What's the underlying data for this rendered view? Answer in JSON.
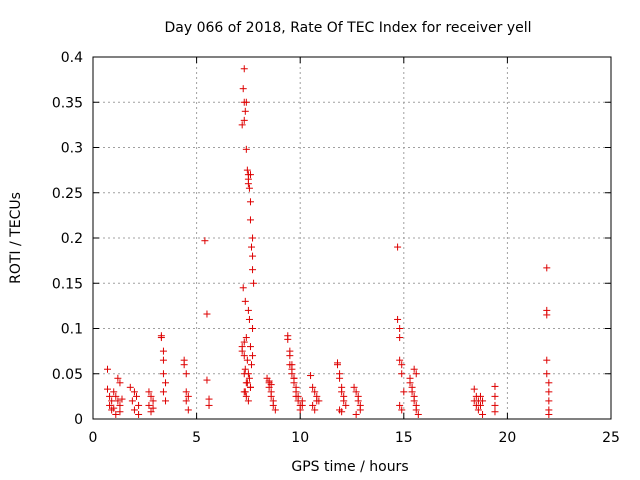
{
  "chart_data": {
    "type": "scatter",
    "title": "Day 066 of 2018, Rate Of TEC Index for receiver yell",
    "xlabel": "GPS time / hours",
    "ylabel": "ROTI / TECUs",
    "xlim": [
      0,
      25
    ],
    "ylim": [
      0,
      0.4
    ],
    "xticks": [
      0,
      5,
      10,
      15,
      20,
      25
    ],
    "yticks": [
      0,
      0.05,
      0.1,
      0.15,
      0.2,
      0.25,
      0.3,
      0.35,
      0.4
    ],
    "xtick_labels": [
      "0",
      "5",
      "10",
      "15",
      "20",
      "25"
    ],
    "ytick_labels": [
      "0",
      "0.05",
      "0.1",
      "0.15",
      "0.2",
      "0.25",
      "0.3",
      "0.35",
      "0.4"
    ],
    "grid": true,
    "marker": "+",
    "color": "#dd0000",
    "series": [
      {
        "name": "ROTI",
        "x": [
          0.7,
          0.7,
          0.8,
          0.8,
          0.9,
          0.9,
          1.0,
          1.0,
          1.1,
          1.1,
          1.2,
          1.2,
          1.3,
          1.3,
          1.3,
          1.4,
          1.8,
          1.9,
          2.0,
          2.0,
          2.1,
          2.2,
          2.2,
          2.7,
          2.7,
          2.8,
          2.8,
          2.9,
          2.9,
          3.3,
          3.3,
          3.4,
          3.4,
          3.4,
          3.4,
          3.5,
          3.5,
          4.4,
          4.4,
          4.5,
          4.5,
          4.5,
          4.6,
          4.6,
          5.4,
          5.5,
          5.5,
          5.6,
          5.6,
          7.2,
          7.25,
          7.3,
          7.3,
          7.3,
          7.35,
          7.4,
          7.4,
          7.45,
          7.5,
          7.5,
          7.5,
          7.55,
          7.6,
          7.6,
          7.6,
          7.65,
          7.7,
          7.7,
          7.7,
          7.75,
          7.25,
          7.35,
          7.5,
          7.55,
          7.7,
          7.4,
          7.3,
          7.6,
          7.2,
          7.3,
          7.45,
          7.65,
          7.35,
          7.5,
          7.55,
          7.4,
          7.6,
          7.3,
          7.4,
          7.5,
          7.2,
          7.7,
          7.3,
          7.45,
          7.6,
          7.35,
          8.4,
          8.5,
          8.5,
          8.6,
          8.6,
          8.7,
          8.7,
          8.8,
          8.5,
          8.6,
          9.4,
          9.4,
          9.5,
          9.5,
          9.6,
          9.6,
          9.7,
          9.7,
          9.8,
          9.8,
          9.9,
          9.9,
          10.0,
          10.0,
          10.1,
          10.1,
          9.5,
          9.6,
          9.7,
          9.8,
          10.5,
          10.6,
          10.7,
          10.8,
          10.9,
          10.6,
          10.7,
          10.8,
          11.8,
          11.8,
          11.9,
          11.9,
          12.0,
          12.0,
          12.1,
          12.1,
          12.2,
          11.9,
          12.0,
          12.6,
          12.7,
          12.8,
          12.8,
          12.9,
          12.9,
          12.7,
          14.7,
          14.7,
          14.8,
          14.8,
          14.8,
          14.9,
          14.9,
          15.0,
          14.8,
          14.9,
          15.3,
          15.4,
          15.4,
          15.5,
          15.5,
          15.6,
          15.6,
          15.7,
          15.3,
          15.5,
          15.6,
          18.4,
          18.4,
          18.5,
          18.5,
          18.6,
          18.6,
          18.7,
          18.7,
          18.8,
          18.8,
          19.4,
          19.4,
          19.4,
          19.4,
          21.9,
          21.9,
          21.9,
          21.9,
          21.9,
          22.0,
          22.0,
          22.0,
          22.0,
          22.0
        ],
        "y": [
          0.055,
          0.033,
          0.025,
          0.015,
          0.02,
          0.01,
          0.03,
          0.012,
          0.025,
          0.005,
          0.045,
          0.02,
          0.04,
          0.015,
          0.008,
          0.022,
          0.035,
          0.02,
          0.03,
          0.01,
          0.025,
          0.015,
          0.005,
          0.03,
          0.015,
          0.025,
          0.008,
          0.02,
          0.012,
          0.092,
          0.09,
          0.075,
          0.065,
          0.05,
          0.03,
          0.04,
          0.02,
          0.065,
          0.06,
          0.05,
          0.03,
          0.02,
          0.025,
          0.01,
          0.197,
          0.116,
          0.043,
          0.022,
          0.015,
          0.325,
          0.365,
          0.387,
          0.35,
          0.33,
          0.34,
          0.298,
          0.35,
          0.275,
          0.27,
          0.26,
          0.265,
          0.255,
          0.27,
          0.24,
          0.22,
          0.19,
          0.2,
          0.18,
          0.165,
          0.15,
          0.145,
          0.13,
          0.12,
          0.11,
          0.1,
          0.09,
          0.085,
          0.08,
          0.075,
          0.07,
          0.065,
          0.06,
          0.055,
          0.05,
          0.045,
          0.04,
          0.035,
          0.03,
          0.025,
          0.02,
          0.08,
          0.07,
          0.05,
          0.04,
          0.035,
          0.03,
          0.045,
          0.04,
          0.035,
          0.03,
          0.025,
          0.02,
          0.015,
          0.01,
          0.042,
          0.038,
          0.092,
          0.088,
          0.075,
          0.06,
          0.055,
          0.05,
          0.045,
          0.04,
          0.035,
          0.03,
          0.025,
          0.02,
          0.015,
          0.01,
          0.02,
          0.015,
          0.07,
          0.06,
          0.045,
          0.025,
          0.048,
          0.035,
          0.03,
          0.025,
          0.02,
          0.015,
          0.01,
          0.02,
          0.062,
          0.06,
          0.05,
          0.045,
          0.035,
          0.03,
          0.025,
          0.02,
          0.015,
          0.01,
          0.008,
          0.035,
          0.03,
          0.025,
          0.02,
          0.015,
          0.01,
          0.005,
          0.19,
          0.11,
          0.1,
          0.09,
          0.065,
          0.06,
          0.05,
          0.03,
          0.015,
          0.01,
          0.045,
          0.035,
          0.03,
          0.025,
          0.02,
          0.015,
          0.01,
          0.005,
          0.04,
          0.055,
          0.05,
          0.033,
          0.02,
          0.025,
          0.015,
          0.02,
          0.01,
          0.025,
          0.015,
          0.02,
          0.005,
          0.036,
          0.025,
          0.015,
          0.008,
          0.167,
          0.12,
          0.115,
          0.065,
          0.05,
          0.04,
          0.03,
          0.02,
          0.01,
          0.005
        ]
      }
    ]
  }
}
